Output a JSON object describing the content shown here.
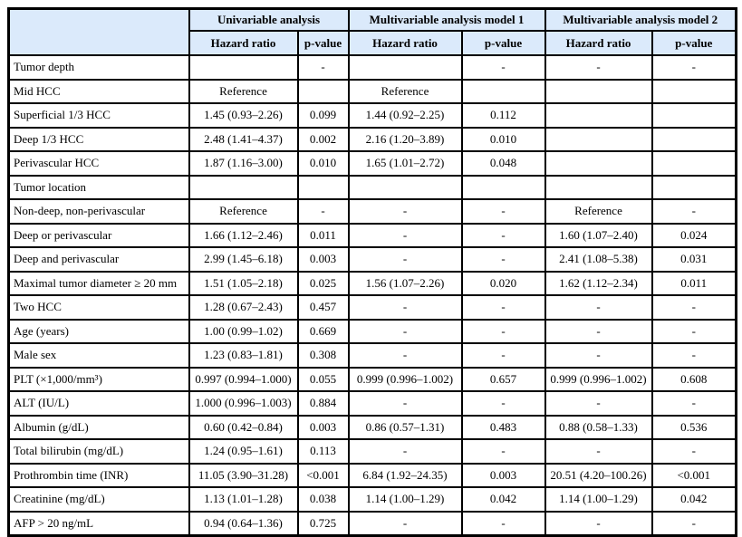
{
  "colors": {
    "header_bg": "#dbeafb",
    "border": "#000000",
    "text": "#000000"
  },
  "table": {
    "corner_label": "",
    "groups": [
      {
        "label": "Univariable analysis"
      },
      {
        "label": "Multivariable analysis model 1"
      },
      {
        "label": "Multivariable analysis model 2"
      }
    ],
    "subheaders": [
      "Hazard ratio",
      "p-value",
      "Hazard ratio",
      "p-value",
      "Hazard ratio",
      "p-value"
    ],
    "rows": [
      {
        "label": "Tumor depth",
        "cells": [
          "",
          "-",
          "",
          "-",
          "-",
          "-"
        ]
      },
      {
        "label": "Mid HCC",
        "cells": [
          "Reference",
          "",
          "Reference",
          "",
          "",
          ""
        ]
      },
      {
        "label": "Superficial 1/3 HCC",
        "cells": [
          "1.45 (0.93–2.26)",
          "0.099",
          "1.44 (0.92–2.25)",
          "0.112",
          "",
          ""
        ]
      },
      {
        "label": "Deep 1/3 HCC",
        "cells": [
          "2.48 (1.41–4.37)",
          "0.002",
          "2.16 (1.20–3.89)",
          "0.010",
          "",
          ""
        ]
      },
      {
        "label": "Perivascular HCC",
        "cells": [
          "1.87 (1.16–3.00)",
          "0.010",
          "1.65 (1.01–2.72)",
          "0.048",
          "",
          ""
        ]
      },
      {
        "label": "Tumor location",
        "cells": [
          "",
          "",
          "",
          "",
          "",
          ""
        ]
      },
      {
        "label": "Non-deep, non-perivascular",
        "cells": [
          "Reference",
          "-",
          "-",
          "-",
          "Reference",
          "-"
        ]
      },
      {
        "label": "Deep or perivascular",
        "cells": [
          "1.66 (1.12–2.46)",
          "0.011",
          "-",
          "-",
          "1.60 (1.07–2.40)",
          "0.024"
        ]
      },
      {
        "label": "Deep and perivascular",
        "cells": [
          "2.99 (1.45–6.18)",
          "0.003",
          "-",
          "-",
          "2.41 (1.08–5.38)",
          "0.031"
        ]
      },
      {
        "label": "Maximal tumor diameter ≥ 20 mm",
        "cells": [
          "1.51 (1.05–2.18)",
          "0.025",
          "1.56 (1.07–2.26)",
          "0.020",
          "1.62 (1.12–2.34)",
          "0.011"
        ]
      },
      {
        "label": "Two HCC",
        "cells": [
          "1.28 (0.67–2.43)",
          "0.457",
          "-",
          "-",
          "-",
          "-"
        ]
      },
      {
        "label": "Age (years)",
        "cells": [
          "1.00 (0.99–1.02)",
          "0.669",
          "-",
          "-",
          "-",
          "-"
        ]
      },
      {
        "label": "Male sex",
        "cells": [
          "1.23 (0.83–1.81)",
          "0.308",
          "-",
          "-",
          "-",
          "-"
        ]
      },
      {
        "label": "PLT (×1,000/mm³)",
        "cells": [
          "0.997 (0.994–1.000)",
          "0.055",
          "0.999 (0.996–1.002)",
          "0.657",
          "0.999 (0.996–1.002)",
          "0.608"
        ]
      },
      {
        "label": "ALT (IU/L)",
        "cells": [
          "1.000 (0.996–1.003)",
          "0.884",
          "-",
          "-",
          "-",
          "-"
        ]
      },
      {
        "label": "Albumin (g/dL)",
        "cells": [
          "0.60 (0.42–0.84)",
          "0.003",
          "0.86 (0.57–1.31)",
          "0.483",
          "0.88 (0.58–1.33)",
          "0.536"
        ]
      },
      {
        "label": "Total bilirubin (mg/dL)",
        "cells": [
          "1.24 (0.95–1.61)",
          "0.113",
          "-",
          "-",
          "-",
          "-"
        ]
      },
      {
        "label": "Prothrombin time (INR)",
        "cells": [
          "11.05 (3.90–31.28)",
          "<0.001",
          "6.84 (1.92–24.35)",
          "0.003",
          "20.51 (4.20–100.26)",
          "<0.001"
        ]
      },
      {
        "label": "Creatinine (mg/dL)",
        "cells": [
          "1.13 (1.01–1.28)",
          "0.038",
          "1.14 (1.00–1.29)",
          "0.042",
          "1.14 (1.00–1.29)",
          "0.042"
        ]
      },
      {
        "label": "AFP > 20 ng/mL",
        "cells": [
          "0.94 (0.64–1.36)",
          "0.725",
          "-",
          "-",
          "-",
          "-"
        ]
      }
    ]
  }
}
